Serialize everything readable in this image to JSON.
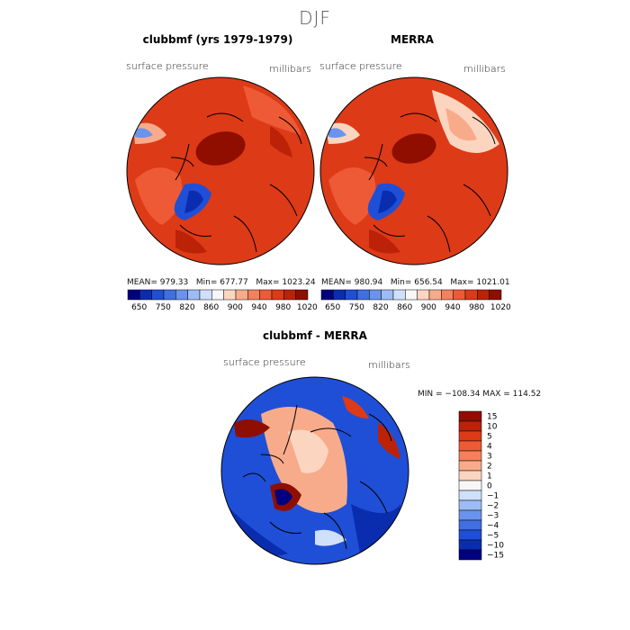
{
  "season": "DJF",
  "panels": {
    "top_left": {
      "title": "clubbmf (yrs 1979-1979)",
      "variable": "surface pressure",
      "units": "millibars",
      "stats": {
        "mean_label": "MEAN=",
        "mean": "979.33",
        "min_label": "Min=",
        "min": "677.77",
        "max_label": "Max=",
        "max": "1023.24"
      }
    },
    "top_right": {
      "title": "MERRA",
      "variable": "surface pressure",
      "units": "millibars",
      "stats": {
        "mean_label": "MEAN=",
        "mean": "980.94",
        "min_label": "Min=",
        "min": "656.54",
        "max_label": "Max=",
        "max": "1021.01"
      }
    },
    "bottom": {
      "title": "clubbmf - MERRA",
      "variable": "surface pressure",
      "units": "millibars",
      "minmax_text": "MIN = −108.34  MAX = 114.52"
    }
  },
  "chart_data": [
    {
      "type": "heatmap",
      "title": "clubbmf (yrs 1979-1979)",
      "variable": "surface pressure",
      "units": "millibars",
      "projection": "north polar stereographic",
      "mean": 979.33,
      "min": 677.77,
      "max": 1023.24,
      "colorbar_levels": [
        650,
        700,
        750,
        780,
        820,
        840,
        860,
        880,
        900,
        920,
        940,
        960,
        980,
        1000,
        1020
      ],
      "colorbar_tick_labels": [
        "650",
        "750",
        "820",
        "860",
        "900",
        "940",
        "980",
        "1020"
      ]
    },
    {
      "type": "heatmap",
      "title": "MERRA",
      "variable": "surface pressure",
      "units": "millibars",
      "projection": "north polar stereographic",
      "mean": 980.94,
      "min": 656.54,
      "max": 1021.01,
      "colorbar_levels": [
        650,
        700,
        750,
        780,
        820,
        840,
        860,
        880,
        900,
        920,
        940,
        960,
        980,
        1000,
        1020
      ],
      "colorbar_tick_labels": [
        "650",
        "750",
        "820",
        "860",
        "900",
        "940",
        "980",
        "1020"
      ]
    },
    {
      "type": "heatmap",
      "title": "clubbmf - MERRA",
      "variable": "surface pressure",
      "units": "millibars",
      "projection": "north polar stereographic",
      "min": -108.34,
      "max": 114.52,
      "colorbar_levels": [
        15,
        10,
        5,
        4,
        3,
        2,
        1,
        0,
        -1,
        -2,
        -3,
        -4,
        -5,
        -10,
        -15
      ],
      "colorbar_tick_labels": [
        "15",
        "10",
        "5",
        "4",
        "3",
        "2",
        "1",
        "0",
        "−1",
        "−2",
        "−3",
        "−4",
        "−5",
        "−10",
        "−15"
      ]
    }
  ],
  "colors": {
    "abs_scale": [
      "#000080",
      "#0a2db0",
      "#1f4fd6",
      "#3f6fe0",
      "#6a93ee",
      "#9cbcf5",
      "#cfe0fb",
      "#f7f7f7",
      "#fcd5c0",
      "#f8ab8a",
      "#f4815c",
      "#ee5a35",
      "#dd3a17",
      "#bb2208",
      "#8f0e00"
    ],
    "diff_scale": [
      "#8f0e00",
      "#bb2208",
      "#dd3a17",
      "#ee5a35",
      "#f4815c",
      "#f8ab8a",
      "#fcd5c0",
      "#f7f7f7",
      "#cfe0fb",
      "#9cbcf5",
      "#6a93ee",
      "#3f6fe0",
      "#1f4fd6",
      "#0a2db0",
      "#000080"
    ],
    "land_outline": "#000000"
  }
}
